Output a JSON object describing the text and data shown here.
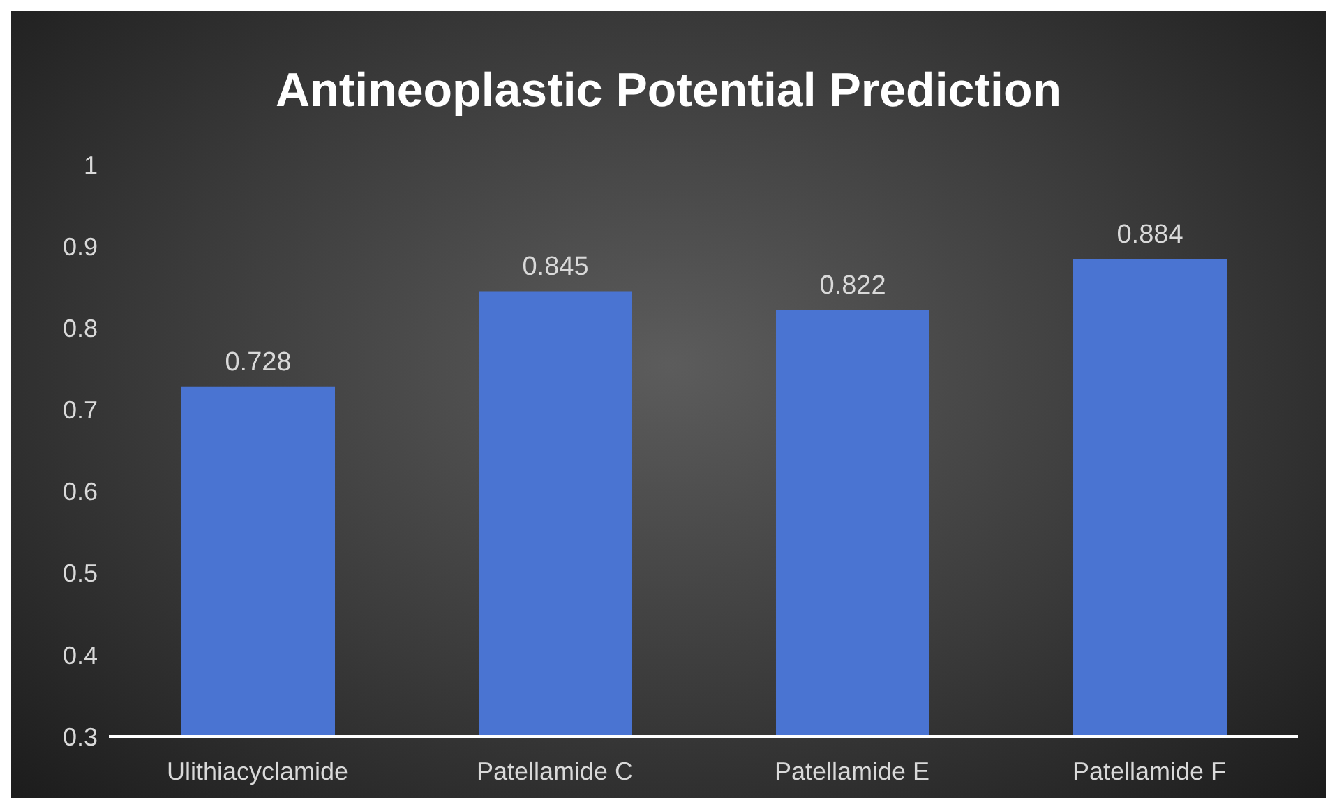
{
  "chart_data": {
    "type": "bar",
    "title": "Antineoplastic Potential Prediction",
    "categories": [
      "Ulithiacyclamide",
      "Patellamide C",
      "Patellamide E",
      "Patellamide F"
    ],
    "values": [
      0.728,
      0.845,
      0.822,
      0.884
    ],
    "color": "#4a74d2",
    "ylim": [
      0.3,
      1
    ],
    "yticks": [
      0.3,
      0.4,
      0.5,
      0.6,
      0.7,
      0.8,
      0.9,
      1
    ],
    "grid": false,
    "data_labels": true
  }
}
